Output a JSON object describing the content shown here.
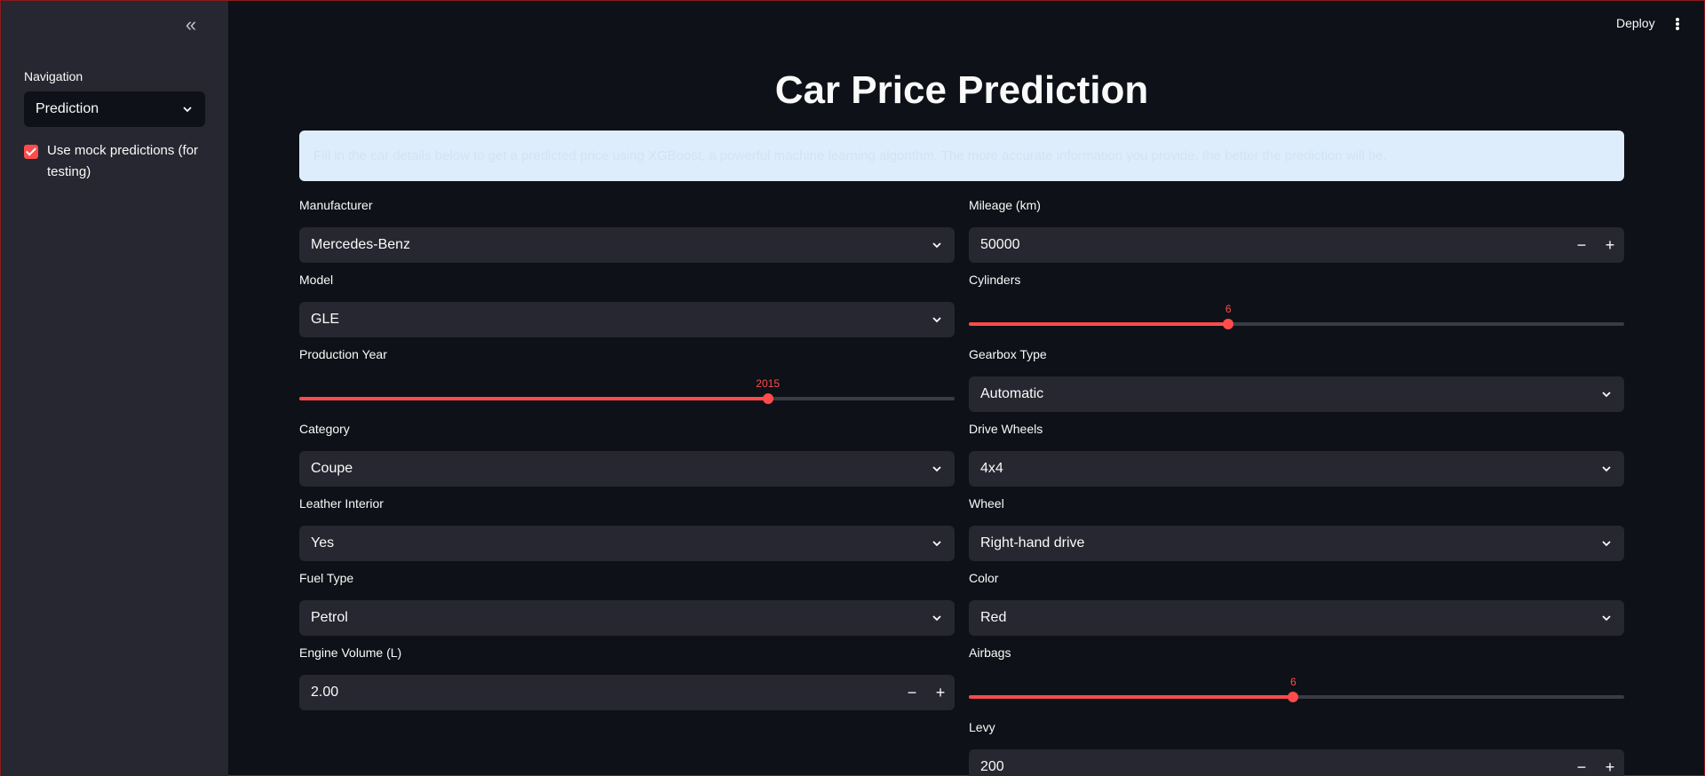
{
  "sidebar": {
    "collapse_icon": "double-chevron-left-icon",
    "nav_label": "Navigation",
    "nav_value": "Prediction",
    "mock_label": "Use mock predictions (for testing)",
    "mock_checked": true
  },
  "header": {
    "deploy_label": "Deploy",
    "menu_icon": "kebab-menu-icon"
  },
  "main": {
    "title": "Car Price Prediction",
    "info": "Fill in the car details below to get a predicted price using XGBoost, a powerful machine learning algorithm. The more accurate information you provide, the better the prediction will be."
  },
  "form": {
    "manufacturer": {
      "label": "Manufacturer",
      "value": "Mercedes-Benz"
    },
    "model": {
      "label": "Model",
      "value": "GLE"
    },
    "production_year": {
      "label": "Production Year",
      "value": "2015",
      "fraction": 0.715
    },
    "category": {
      "label": "Category",
      "value": "Coupe"
    },
    "leather_interior": {
      "label": "Leather Interior",
      "value": "Yes"
    },
    "fuel_type": {
      "label": "Fuel Type",
      "value": "Petrol"
    },
    "engine_volume": {
      "label": "Engine Volume (L)",
      "value": "2.00"
    },
    "mileage": {
      "label": "Mileage (km)",
      "value": "50000"
    },
    "cylinders": {
      "label": "Cylinders",
      "value": "6",
      "fraction": 0.396
    },
    "gearbox_type": {
      "label": "Gearbox Type",
      "value": "Automatic"
    },
    "drive_wheels": {
      "label": "Drive Wheels",
      "value": "4x4"
    },
    "wheel": {
      "label": "Wheel",
      "value": "Right-hand drive"
    },
    "color": {
      "label": "Color",
      "value": "Red"
    },
    "airbags": {
      "label": "Airbags",
      "value": "6",
      "fraction": 0.495
    },
    "levy": {
      "label": "Levy",
      "value": "200"
    },
    "stepper_minus": "−",
    "stepper_plus": "+"
  },
  "colors": {
    "accent": "#ff4b4b",
    "background": "#0e1117",
    "sidebar": "#262730",
    "info_bg": "#deedfb"
  }
}
